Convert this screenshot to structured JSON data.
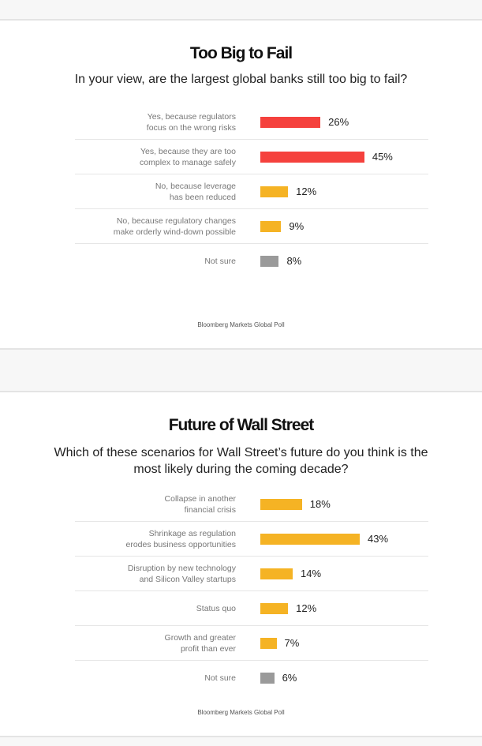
{
  "colors": {
    "red": "#f5413d",
    "yellow": "#f5b324",
    "gray": "#9a9a9a"
  },
  "chart_data": [
    {
      "type": "bar",
      "orientation": "horizontal",
      "title": "Too Big to Fail",
      "subtitle": "In your view, are the largest global banks still too big to fail?",
      "source": "Bloomberg Markets Global Poll",
      "categories": [
        "Yes, because regulators focus on the wrong risks",
        "Yes, because they are too complex to manage safely",
        "No, because leverage has been reduced",
        "No, because regulatory changes make orderly wind-down possible",
        "Not sure"
      ],
      "labels": [
        [
          "Yes, because regulators",
          "focus on the wrong risks"
        ],
        [
          "Yes, because they are too",
          "complex to manage safely"
        ],
        [
          "No, because leverage",
          "has been reduced"
        ],
        [
          "No, because regulatory changes",
          "make orderly wind-down possible"
        ],
        [
          "Not sure"
        ]
      ],
      "values": [
        26,
        45,
        12,
        9,
        8
      ],
      "value_labels": [
        "26%",
        "45%",
        "12%",
        "9%",
        "8%"
      ],
      "bar_colors": [
        "red",
        "red",
        "yellow",
        "yellow",
        "gray"
      ]
    },
    {
      "type": "bar",
      "orientation": "horizontal",
      "title": "Future of Wall Street",
      "subtitle": "Which of these scenarios for Wall Street’s future do you think is the most likely during the coming decade?",
      "source": "Bloomberg Markets Global Poll",
      "categories": [
        "Collapse in another financial crisis",
        "Shrinkage as regulation erodes business opportunities",
        "Disruption by new technology and Silicon Valley startups",
        "Status quo",
        "Growth and greater profit than ever",
        "Not sure"
      ],
      "labels": [
        [
          "Collapse in another",
          "financial crisis"
        ],
        [
          "Shrinkage as regulation",
          "erodes business opportunities"
        ],
        [
          "Disruption by new technology",
          "and Silicon Valley startups"
        ],
        [
          "Status quo"
        ],
        [
          "Growth and greater",
          "profit than ever"
        ],
        [
          "Not sure"
        ]
      ],
      "values": [
        18,
        43,
        14,
        12,
        7,
        6
      ],
      "value_labels": [
        "18%",
        "43%",
        "14%",
        "12%",
        "7%",
        "6%"
      ],
      "bar_colors": [
        "yellow",
        "yellow",
        "yellow",
        "yellow",
        "yellow",
        "gray"
      ]
    }
  ]
}
